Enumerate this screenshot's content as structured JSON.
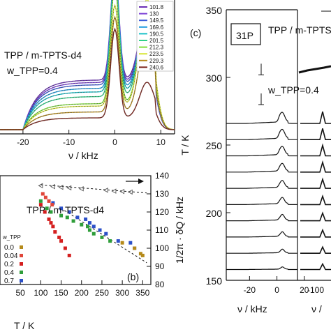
{
  "chart_data": [
    {
      "panel": "a",
      "type": "line",
      "title": "TPP / m-TPTS-d4",
      "annotation_w": "w_TPP=0.4",
      "xlabel": "ν / kHz",
      "xlim": [
        -25,
        13
      ],
      "xticks": [
        -20,
        -10,
        0,
        10
      ],
      "legend": {
        "placement": "top-right",
        "entries": [
          "101.8",
          "130",
          "149.5",
          "169.6",
          "190.5",
          "201.5",
          "212.3",
          "223.5",
          "229.3",
          "240.6"
        ]
      },
      "series_colors": [
        "#6a2fb5",
        "#7b3fd6",
        "#3a5bd8",
        "#1f9de0",
        "#18c0c8",
        "#2fd08a",
        "#7fe03a",
        "#d9e63a",
        "#b58a1a",
        "#7a2018"
      ],
      "line_shapes": [
        {
          "peak1": 0.92,
          "peak2": 0.62,
          "plateau": 0.42,
          "fit": "#444444"
        },
        {
          "peak1": 0.92,
          "peak2": 0.62,
          "plateau": 0.4,
          "fit": "#444444"
        },
        {
          "peak1": 0.94,
          "peak2": 0.64,
          "plateau": 0.38,
          "fit": "#444444"
        },
        {
          "peak1": 0.96,
          "peak2": 0.68,
          "plateau": 0.35,
          "fit": "#444444"
        },
        {
          "peak1": 0.98,
          "peak2": 0.72,
          "plateau": 0.32,
          "fit": "#444444"
        },
        {
          "peak1": 0.99,
          "peak2": 0.78,
          "plateau": 0.28,
          "fit": "#444444"
        },
        {
          "peak1": 1.0,
          "peak2": 0.85,
          "plateau": 0.22,
          "fit": "#444444"
        },
        {
          "peak1": 0.85,
          "peak2": 0.9,
          "plateau": 0.2,
          "fit": "#444444"
        },
        {
          "peak1": 0.8,
          "peak2": 0.7,
          "plateau": 0.15,
          "fit": "#444444"
        },
        {
          "peak1": 0.75,
          "peak2": 0.3,
          "plateau": 0.1,
          "fit": "#444444"
        }
      ]
    },
    {
      "panel": "b",
      "type": "scatter",
      "title": "TPP / m-TPTS-d4",
      "panel_label": "(b)",
      "xlabel": "T / K",
      "ylabel_right": "1/2π · δQ / kHz",
      "xlim": [
        0,
        370
      ],
      "xticks": [
        50,
        100,
        150,
        200,
        250,
        300,
        350
      ],
      "ylim": [
        80,
        140
      ],
      "yticks": [
        80,
        90,
        100,
        110,
        120,
        130,
        140
      ],
      "legend": {
        "placement": "bottom-left",
        "title": "w_TPP",
        "entries": [
          "0.0",
          "0.04",
          "0.2",
          "0.4",
          "0.7"
        ],
        "colors": [
          "#b58a1a",
          "#e0463a",
          "#d41e1e",
          "#2f9e3a",
          "#2b4fc8"
        ]
      },
      "series": [
        {
          "name": "0.2",
          "color": "#d41e1e",
          "marker": "square",
          "x": [
            100,
            110,
            120,
            125,
            130,
            135,
            145,
            150,
            160,
            170
          ],
          "y": [
            124,
            120,
            116,
            114,
            112,
            109,
            106,
            104,
            100,
            96
          ]
        },
        {
          "name": "0.4",
          "color": "#2f9e3a",
          "marker": "square",
          "x": [
            100,
            115,
            125,
            150,
            165,
            180,
            200,
            215,
            220,
            230,
            250,
            270
          ],
          "y": [
            126,
            122,
            120,
            118,
            117,
            115,
            113,
            112,
            110,
            108,
            106,
            104
          ]
        },
        {
          "name": "0.7",
          "color": "#2b4fc8",
          "marker": "square",
          "x": [
            130,
            150,
            170,
            190,
            210,
            220,
            230,
            245,
            260,
            290,
            320,
            330
          ],
          "y": [
            125,
            122,
            120,
            117,
            116,
            114,
            112,
            110,
            108,
            104,
            103,
            100
          ]
        },
        {
          "name": "0.0",
          "color": "#b58a1a",
          "marker": "square",
          "x": [
            300,
            330,
            345,
            350
          ],
          "y": [
            103,
            100,
            97,
            96
          ]
        },
        {
          "name": "0.04",
          "color": "#e0463a",
          "marker": "square",
          "x": [
            105,
            112,
            120,
            128
          ],
          "y": [
            130,
            128,
            126,
            124
          ]
        }
      ],
      "upper_series": {
        "color": "#555555",
        "marker": "triangle-left",
        "x": [
          100,
          130,
          150,
          170,
          200,
          260,
          280,
          300,
          320
        ],
        "y": [
          134.5,
          134,
          133.6,
          133.3,
          132.8,
          132,
          131.5,
          131.3,
          131
        ]
      },
      "upper_fit": {
        "x": [
          100,
          360
        ],
        "y": [
          135,
          130.5
        ]
      },
      "lower_fit": {
        "x": [
          150,
          360
        ],
        "y": [
          122,
          92
        ]
      }
    },
    {
      "panel": "c",
      "type": "line",
      "nucleus_label": "31P",
      "title": "TPP / m-TPTS-d4",
      "annotation_w": "w_TPP=0.4",
      "panel_label": "(c)",
      "xlabel": "ν / kHz",
      "ylabel": "T / K",
      "ylim": [
        150,
        350
      ],
      "yticks": [
        150,
        200,
        250,
        300,
        350
      ],
      "xlim": [
        -37,
        15
      ],
      "xticks": [
        -20,
        0,
        20
      ],
      "right_xlabel": "ν /",
      "right_xticks": [
        -100
      ],
      "spectra_temperatures": [
        158,
        170,
        182,
        194,
        206,
        218,
        230,
        242,
        254,
        266
      ],
      "peak_heights": [
        0.35,
        0.55,
        0.7,
        0.85,
        0.95,
        1.05,
        1.15,
        1.25,
        1.35,
        1.45
      ],
      "marker_temperatures": [
        306,
        284
      ]
    }
  ]
}
